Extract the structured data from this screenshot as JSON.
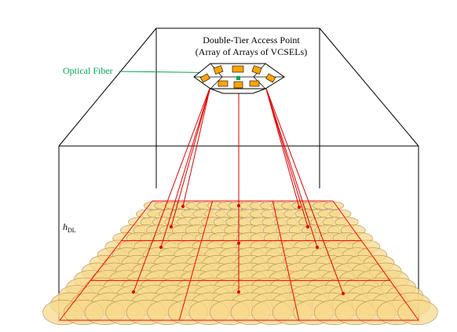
{
  "diagram": {
    "title_line1": "Double-Tier Access Point",
    "title_line2": "(Array of Arrays of VCSELs)",
    "fiber_label": "Optical Fiber",
    "height_label_main": "h",
    "height_label_sub": "DL"
  },
  "colors": {
    "fiber": "#00a651",
    "beams": "#e10000",
    "grid": "#ff0000",
    "spot_fill": "#f7d98c",
    "spot_stroke": "#b09050",
    "vcsel": "#ffa500",
    "room_lines": "#000000"
  },
  "floor_grid": {
    "rows": 14,
    "cols": 18
  }
}
